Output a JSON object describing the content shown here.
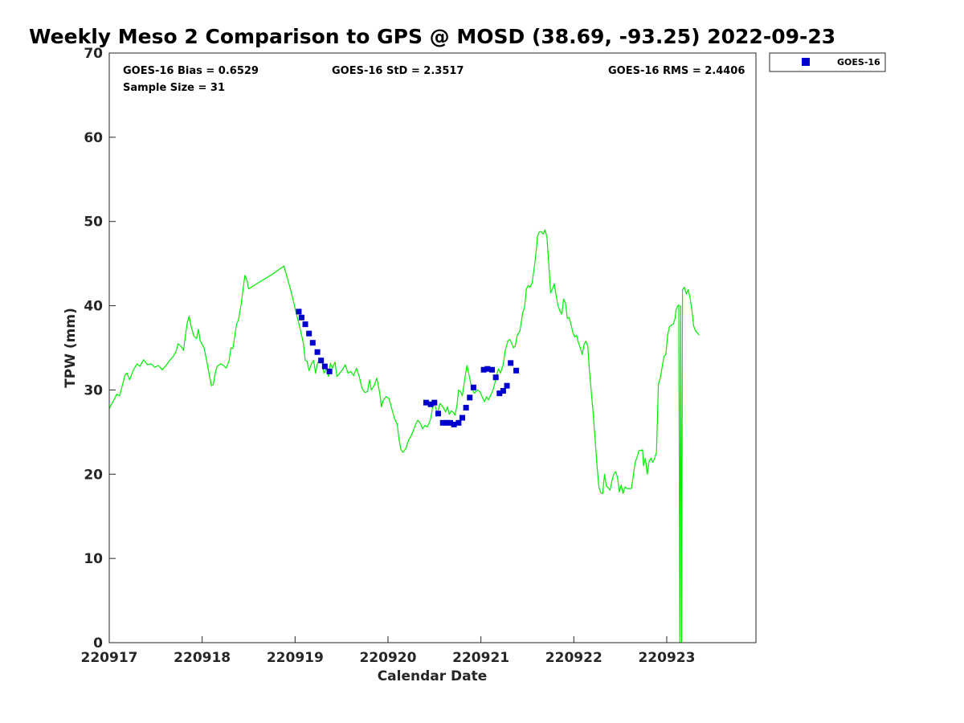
{
  "chart_data": {
    "type": "line",
    "title": "Weekly Meso 2 Comparison to GPS @ MOSD (38.69, -93.25) 2022-09-23",
    "xlabel": "Calendar Date",
    "ylabel": "TPW (mm)",
    "xlim": [
      0,
      6.96
    ],
    "ylim": [
      0,
      70
    ],
    "x_ticks": [
      {
        "value": 0,
        "label": "220917"
      },
      {
        "value": 1,
        "label": "220918"
      },
      {
        "value": 2,
        "label": "220919"
      },
      {
        "value": 3,
        "label": "220920"
      },
      {
        "value": 4,
        "label": "220921"
      },
      {
        "value": 5,
        "label": "220922"
      },
      {
        "value": 6,
        "label": "220923"
      }
    ],
    "y_ticks": [
      {
        "value": 0,
        "label": "0"
      },
      {
        "value": 10,
        "label": "10"
      },
      {
        "value": 20,
        "label": "20"
      },
      {
        "value": 30,
        "label": "30"
      },
      {
        "value": 40,
        "label": "40"
      },
      {
        "value": 50,
        "label": "50"
      },
      {
        "value": 60,
        "label": "60"
      },
      {
        "value": 70,
        "label": "70"
      }
    ],
    "grid": false,
    "legend_position": "top-right, outside",
    "stats": {
      "bias": "GOES-16 Bias = 0.6529",
      "std": "GOES-16 StD = 2.3517",
      "rms": "GOES-16 RMS = 2.4406",
      "sample": "Sample Size = 31"
    },
    "series": [
      {
        "color": "#00ee00",
        "style": "line",
        "points": [
          [
            0.0,
            27.8
          ],
          [
            0.04,
            28.6
          ],
          [
            0.08,
            29.5
          ],
          [
            0.11,
            29.3
          ],
          [
            0.14,
            30.5
          ],
          [
            0.17,
            31.8
          ],
          [
            0.19,
            32.0
          ],
          [
            0.22,
            31.2
          ],
          [
            0.26,
            32.4
          ],
          [
            0.3,
            33.1
          ],
          [
            0.33,
            32.8
          ],
          [
            0.37,
            33.6
          ],
          [
            0.41,
            33.0
          ],
          [
            0.45,
            33.1
          ],
          [
            0.49,
            32.7
          ],
          [
            0.53,
            32.9
          ],
          [
            0.57,
            32.4
          ],
          [
            0.61,
            32.9
          ],
          [
            0.65,
            33.5
          ],
          [
            0.69,
            34.0
          ],
          [
            0.72,
            34.6
          ],
          [
            0.74,
            35.5
          ],
          [
            0.77,
            35.2
          ],
          [
            0.8,
            34.7
          ],
          [
            0.82,
            36.5
          ],
          [
            0.84,
            38.0
          ],
          [
            0.86,
            38.8
          ],
          [
            0.88,
            37.6
          ],
          [
            0.91,
            36.4
          ],
          [
            0.94,
            36.1
          ],
          [
            0.96,
            37.2
          ],
          [
            0.98,
            35.8
          ],
          [
            1.02,
            35.0
          ],
          [
            1.05,
            33.4
          ],
          [
            1.08,
            31.6
          ],
          [
            1.1,
            30.5
          ],
          [
            1.12,
            30.6
          ],
          [
            1.14,
            32.0
          ],
          [
            1.16,
            32.8
          ],
          [
            1.2,
            33.1
          ],
          [
            1.23,
            32.9
          ],
          [
            1.26,
            32.6
          ],
          [
            1.29,
            33.5
          ],
          [
            1.31,
            35.0
          ],
          [
            1.33,
            34.9
          ],
          [
            1.35,
            36.3
          ],
          [
            1.37,
            37.8
          ],
          [
            1.39,
            38.3
          ],
          [
            1.42,
            40.2
          ],
          [
            1.44,
            42.0
          ],
          [
            1.46,
            43.6
          ],
          [
            1.48,
            43.1
          ],
          [
            1.5,
            42.0
          ],
          [
            1.6,
            42.7
          ],
          [
            1.75,
            43.7
          ],
          [
            1.88,
            44.7
          ],
          [
            1.95,
            42.0
          ],
          [
            2.02,
            38.8
          ],
          [
            2.06,
            37.0
          ],
          [
            2.09,
            35.5
          ],
          [
            2.11,
            33.5
          ],
          [
            2.13,
            33.4
          ],
          [
            2.15,
            32.3
          ],
          [
            2.18,
            33.2
          ],
          [
            2.2,
            33.5
          ],
          [
            2.22,
            32.0
          ],
          [
            2.24,
            33.1
          ],
          [
            2.26,
            33.6
          ],
          [
            2.29,
            33.4
          ],
          [
            2.31,
            32.0
          ],
          [
            2.34,
            32.5
          ],
          [
            2.36,
            31.6
          ],
          [
            2.38,
            33.2
          ],
          [
            2.4,
            32.6
          ],
          [
            2.43,
            33.3
          ],
          [
            2.45,
            31.6
          ],
          [
            2.48,
            32.0
          ],
          [
            2.51,
            32.4
          ],
          [
            2.54,
            33.0
          ],
          [
            2.57,
            32.0
          ],
          [
            2.6,
            32.2
          ],
          [
            2.63,
            31.7
          ],
          [
            2.66,
            32.6
          ],
          [
            2.69,
            31.6
          ],
          [
            2.72,
            30.2
          ],
          [
            2.75,
            29.7
          ],
          [
            2.78,
            29.8
          ],
          [
            2.8,
            31.2
          ],
          [
            2.82,
            30.0
          ],
          [
            2.85,
            30.5
          ],
          [
            2.88,
            31.4
          ],
          [
            2.91,
            29.7
          ],
          [
            2.93,
            28.0
          ],
          [
            2.95,
            28.8
          ],
          [
            2.98,
            29.2
          ],
          [
            3.01,
            29.0
          ],
          [
            3.04,
            27.8
          ],
          [
            3.07,
            26.6
          ],
          [
            3.1,
            25.9
          ],
          [
            3.12,
            24.0
          ],
          [
            3.14,
            22.9
          ],
          [
            3.16,
            22.6
          ],
          [
            3.19,
            23.0
          ],
          [
            3.22,
            24.0
          ],
          [
            3.25,
            24.6
          ],
          [
            3.27,
            25.1
          ],
          [
            3.3,
            26.0
          ],
          [
            3.32,
            26.4
          ],
          [
            3.35,
            26.0
          ],
          [
            3.37,
            25.4
          ],
          [
            3.4,
            25.8
          ],
          [
            3.42,
            25.6
          ],
          [
            3.44,
            26.0
          ],
          [
            3.46,
            26.6
          ],
          [
            3.48,
            28.0
          ],
          [
            3.5,
            28.4
          ],
          [
            3.53,
            27.2
          ],
          [
            3.56,
            28.4
          ],
          [
            3.59,
            28.0
          ],
          [
            3.62,
            27.4
          ],
          [
            3.64,
            28.0
          ],
          [
            3.66,
            27.1
          ],
          [
            3.68,
            27.5
          ],
          [
            3.7,
            27.4
          ],
          [
            3.72,
            27.0
          ],
          [
            3.74,
            28.0
          ],
          [
            3.76,
            30.0
          ],
          [
            3.78,
            29.8
          ],
          [
            3.8,
            29.3
          ],
          [
            3.83,
            31.6
          ],
          [
            3.85,
            32.9
          ],
          [
            3.87,
            31.9
          ],
          [
            3.89,
            30.8
          ],
          [
            3.91,
            30.0
          ],
          [
            3.93,
            29.6
          ],
          [
            3.96,
            30.0
          ],
          [
            3.99,
            29.8
          ],
          [
            4.02,
            29.0
          ],
          [
            4.04,
            28.6
          ],
          [
            4.06,
            29.2
          ],
          [
            4.08,
            28.8
          ],
          [
            4.11,
            29.5
          ],
          [
            4.13,
            30.0
          ],
          [
            4.15,
            30.8
          ],
          [
            4.17,
            31.8
          ],
          [
            4.19,
            32.5
          ],
          [
            4.21,
            32.0
          ],
          [
            4.24,
            33.0
          ],
          [
            4.26,
            34.6
          ],
          [
            4.29,
            35.8
          ],
          [
            4.31,
            36.0
          ],
          [
            4.33,
            35.6
          ],
          [
            4.35,
            35.0
          ],
          [
            4.37,
            35.2
          ],
          [
            4.39,
            36.5
          ],
          [
            4.42,
            37.0
          ],
          [
            4.45,
            39.2
          ],
          [
            4.47,
            39.8
          ],
          [
            4.49,
            42.0
          ],
          [
            4.51,
            42.4
          ],
          [
            4.53,
            42.2
          ],
          [
            4.55,
            42.7
          ],
          [
            4.57,
            44.2
          ],
          [
            4.59,
            46.0
          ],
          [
            4.61,
            48.3
          ],
          [
            4.63,
            48.8
          ],
          [
            4.65,
            48.8
          ],
          [
            4.67,
            48.5
          ],
          [
            4.69,
            49.0
          ],
          [
            4.71,
            48.2
          ],
          [
            4.73,
            45.0
          ],
          [
            4.75,
            41.5
          ],
          [
            4.77,
            42.0
          ],
          [
            4.79,
            42.6
          ],
          [
            4.81,
            41.2
          ],
          [
            4.83,
            40.0
          ],
          [
            4.85,
            39.4
          ],
          [
            4.87,
            39.0
          ],
          [
            4.89,
            40.8
          ],
          [
            4.91,
            40.3
          ],
          [
            4.93,
            38.5
          ],
          [
            4.95,
            38.6
          ],
          [
            4.97,
            37.8
          ],
          [
            4.99,
            36.8
          ],
          [
            5.01,
            36.3
          ],
          [
            5.03,
            36.5
          ],
          [
            5.05,
            35.6
          ],
          [
            5.07,
            35.0
          ],
          [
            5.09,
            34.2
          ],
          [
            5.11,
            35.4
          ],
          [
            5.13,
            35.8
          ],
          [
            5.15,
            35.2
          ],
          [
            5.17,
            32.0
          ],
          [
            5.19,
            29.5
          ],
          [
            5.21,
            27.0
          ],
          [
            5.23,
            24.0
          ],
          [
            5.25,
            21.0
          ],
          [
            5.27,
            18.5
          ],
          [
            5.29,
            17.8
          ],
          [
            5.31,
            17.7
          ],
          [
            5.33,
            20.0
          ],
          [
            5.35,
            18.6
          ],
          [
            5.37,
            18.4
          ],
          [
            5.39,
            18.1
          ],
          [
            5.41,
            19.2
          ],
          [
            5.43,
            20.0
          ],
          [
            5.45,
            20.3
          ],
          [
            5.47,
            19.6
          ],
          [
            5.49,
            17.9
          ],
          [
            5.51,
            18.7
          ],
          [
            5.53,
            17.7
          ],
          [
            5.55,
            18.5
          ],
          [
            5.57,
            18.3
          ],
          [
            5.62,
            18.3
          ],
          [
            5.64,
            19.8
          ],
          [
            5.66,
            21.4
          ],
          [
            5.68,
            22.0
          ],
          [
            5.7,
            22.8
          ],
          [
            5.72,
            22.8
          ],
          [
            5.74,
            22.9
          ],
          [
            5.75,
            21.0
          ],
          [
            5.77,
            21.9
          ],
          [
            5.79,
            20.0
          ],
          [
            5.81,
            21.5
          ],
          [
            5.83,
            21.9
          ],
          [
            5.85,
            21.4
          ],
          [
            5.87,
            21.9
          ],
          [
            5.89,
            22.6
          ],
          [
            5.91,
            30.7
          ],
          [
            5.93,
            31.4
          ],
          [
            5.95,
            32.7
          ],
          [
            5.97,
            34.0
          ],
          [
            5.99,
            34.2
          ],
          [
            6.01,
            36.5
          ],
          [
            6.03,
            37.5
          ],
          [
            6.05,
            37.7
          ],
          [
            6.07,
            37.8
          ],
          [
            6.09,
            38.5
          ],
          [
            6.1,
            39.5
          ],
          [
            6.12,
            40.0
          ],
          [
            6.13,
            40.1
          ],
          [
            6.14,
            0.0
          ],
          [
            6.15,
            40.0
          ],
          [
            6.16,
            0.0
          ],
          [
            6.17,
            41.9
          ],
          [
            6.19,
            42.2
          ],
          [
            6.21,
            41.4
          ],
          [
            6.23,
            41.9
          ],
          [
            6.25,
            41.0
          ],
          [
            6.27,
            39.5
          ],
          [
            6.29,
            37.6
          ],
          [
            6.31,
            37.0
          ],
          [
            6.33,
            36.8
          ],
          [
            6.35,
            36.5
          ]
        ]
      },
      {
        "name": "GOES-16",
        "color": "#0000cc",
        "style": "marker",
        "points": [
          [
            2.04,
            39.3
          ],
          [
            2.07,
            38.6
          ],
          [
            2.11,
            37.8
          ],
          [
            2.15,
            36.7
          ],
          [
            2.19,
            35.6
          ],
          [
            2.24,
            34.5
          ],
          [
            2.28,
            33.5
          ],
          [
            2.32,
            32.8
          ],
          [
            2.37,
            32.2
          ],
          [
            3.41,
            28.5
          ],
          [
            3.46,
            28.3
          ],
          [
            3.5,
            28.5
          ],
          [
            3.54,
            27.2
          ],
          [
            3.59,
            26.1
          ],
          [
            3.63,
            26.1
          ],
          [
            3.67,
            26.1
          ],
          [
            3.71,
            25.9
          ],
          [
            3.76,
            26.1
          ],
          [
            3.8,
            26.7
          ],
          [
            3.84,
            27.9
          ],
          [
            3.88,
            29.1
          ],
          [
            3.92,
            30.3
          ],
          [
            4.03,
            32.4
          ],
          [
            4.07,
            32.5
          ],
          [
            4.12,
            32.4
          ],
          [
            4.16,
            31.5
          ],
          [
            4.2,
            29.6
          ],
          [
            4.24,
            29.9
          ],
          [
            4.28,
            30.5
          ],
          [
            4.32,
            33.2
          ],
          [
            4.38,
            32.3
          ]
        ]
      }
    ]
  }
}
